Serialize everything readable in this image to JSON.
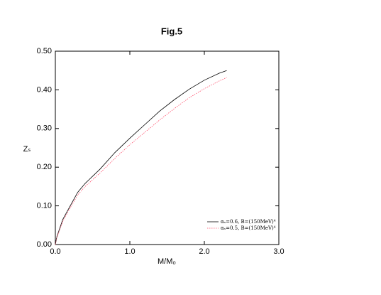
{
  "chart_data": {
    "type": "line",
    "title": "Fig.5",
    "xlabel": "M/M₀",
    "ylabel": "Zₛ",
    "x": [
      0,
      0.02,
      0.1,
      0.2,
      0.3,
      0.4,
      0.6,
      0.8,
      1.0,
      1.2,
      1.4,
      1.6,
      1.8,
      2.0,
      2.2,
      2.3
    ],
    "series": [
      {
        "name": "αₛ=0.6, B=(150MeV)⁴",
        "color": "#000000",
        "dash": false,
        "values": [
          0,
          0.02,
          0.065,
          0.1,
          0.135,
          0.158,
          0.195,
          0.238,
          0.275,
          0.31,
          0.345,
          0.375,
          0.402,
          0.425,
          0.443,
          0.45
        ]
      },
      {
        "name": "αₛ=0.5, B=(150MeV)⁴",
        "color": "#ff4d6a",
        "dash": true,
        "values": [
          0,
          0.018,
          0.06,
          0.095,
          0.128,
          0.15,
          0.185,
          0.223,
          0.258,
          0.29,
          0.322,
          0.352,
          0.38,
          0.403,
          0.423,
          0.432
        ]
      }
    ],
    "xlim": [
      0,
      3
    ],
    "ylim": [
      0,
      0.5
    ],
    "xticks": [
      {
        "value": 0,
        "label": "0.0"
      },
      {
        "value": 1,
        "label": "1.0"
      },
      {
        "value": 2,
        "label": "2.0"
      },
      {
        "value": 3,
        "label": "3.0"
      }
    ],
    "yticks": [
      {
        "value": 0,
        "label": "0.00"
      },
      {
        "value": 0.1,
        "label": "0.10"
      },
      {
        "value": 0.2,
        "label": "0.20"
      },
      {
        "value": 0.3,
        "label": "0.30"
      },
      {
        "value": 0.4,
        "label": "0.40"
      },
      {
        "value": 0.5,
        "label": "0.50"
      }
    ],
    "grid": false,
    "legend": "lower right"
  }
}
